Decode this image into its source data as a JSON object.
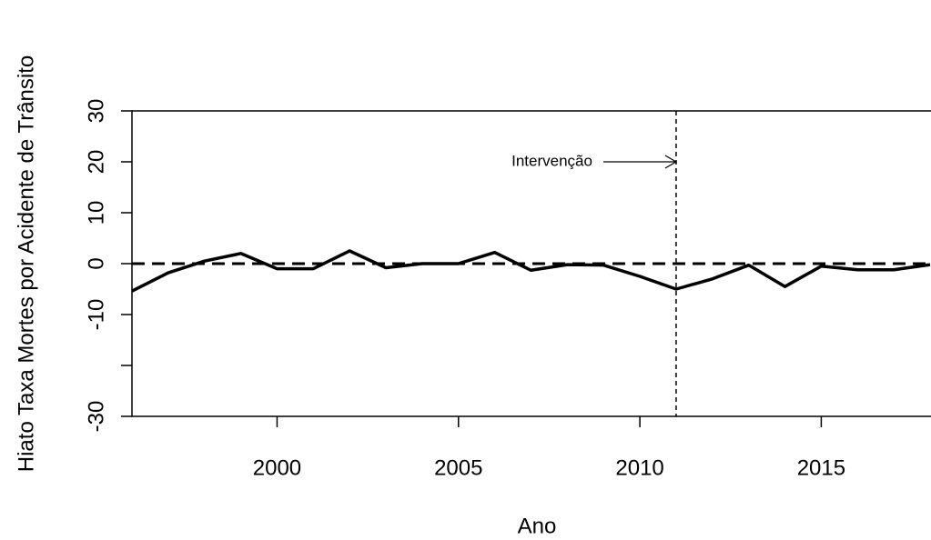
{
  "chart_data": {
    "type": "line",
    "x_label": "Ano",
    "y_label": "Hiato Taxa Mortes por Acidente de Trânsito",
    "x": [
      1996,
      1997,
      1998,
      1999,
      2000,
      2001,
      2002,
      2003,
      2004,
      2005,
      2006,
      2007,
      2008,
      2009,
      2010,
      2011,
      2012,
      2013,
      2014,
      2015,
      2016,
      2017,
      2018
    ],
    "series": [
      {
        "color": "#000000",
        "values": [
          -5.4,
          -1.8,
          0.5,
          2,
          -1,
          -1,
          2.5,
          -0.8,
          0,
          0,
          2.2,
          -1.3,
          -0.2,
          -0.3,
          -2.5,
          -5,
          -3,
          -0.3,
          -4.5,
          -0.5,
          -1.2,
          -1.2,
          -0.2
        ]
      }
    ],
    "xlim": [
      1996,
      2018
    ],
    "ylim": [
      -30,
      30
    ],
    "xticks": [
      2000,
      2005,
      2010,
      2015
    ],
    "yticks": [
      -30,
      {
        "value": -20,
        "label": null
      },
      -10,
      0,
      10,
      20,
      30
    ],
    "hline": 0,
    "vline": 2011,
    "annotation": {
      "text": "Intervenção",
      "x": 2011,
      "y": 20
    }
  }
}
